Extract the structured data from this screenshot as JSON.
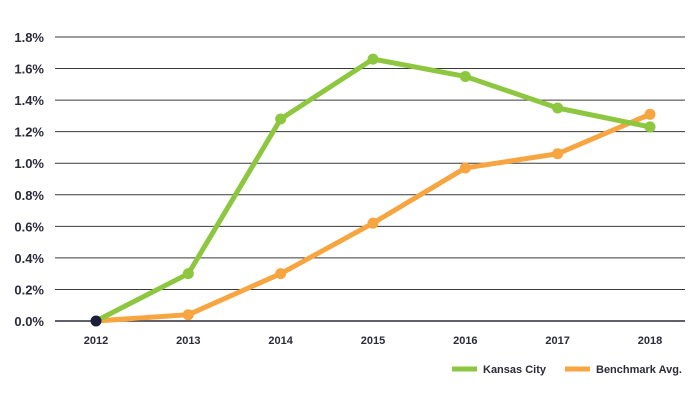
{
  "chart_data": {
    "type": "line",
    "title": "",
    "xlabel": "",
    "ylabel": "",
    "x": [
      "2012",
      "2013",
      "2014",
      "2015",
      "2016",
      "2017",
      "2018"
    ],
    "y_ticks": [
      "0.0%",
      "0.2%",
      "0.4%",
      "0.6%",
      "0.8%",
      "1.0%",
      "1.2%",
      "1.4%",
      "1.6%",
      "1.8%"
    ],
    "ylim": [
      0,
      1.8
    ],
    "y_unit": "%",
    "grid": true,
    "legend_position": "bottom-right",
    "series": [
      {
        "name": "Kansas City",
        "color": "#8dc63f",
        "values": [
          0.0,
          0.3,
          1.28,
          1.66,
          1.55,
          1.35,
          1.23
        ]
      },
      {
        "name": "Benchmark Avg.",
        "color": "#f7a541",
        "values": [
          0.0,
          0.04,
          0.3,
          0.62,
          0.97,
          1.06,
          1.31
        ]
      }
    ],
    "origin_marker_color": "#1b1f3b"
  }
}
